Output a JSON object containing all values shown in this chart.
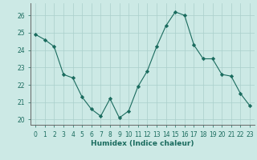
{
  "x": [
    0,
    1,
    2,
    3,
    4,
    5,
    6,
    7,
    8,
    9,
    10,
    11,
    12,
    13,
    14,
    15,
    16,
    17,
    18,
    19,
    20,
    21,
    22,
    23
  ],
  "y": [
    24.9,
    24.6,
    24.2,
    22.6,
    22.4,
    21.3,
    20.6,
    20.2,
    21.2,
    20.1,
    20.5,
    21.9,
    22.8,
    24.2,
    25.4,
    26.2,
    26.0,
    24.3,
    23.5,
    23.5,
    22.6,
    22.5,
    21.5,
    20.8
  ],
  "line_color": "#1a6b5e",
  "marker": "D",
  "marker_size": 2.2,
  "bg_color": "#cce9e5",
  "grid_color": "#aacfcb",
  "xlabel": "Humidex (Indice chaleur)",
  "xlim": [
    -0.5,
    23.5
  ],
  "ylim": [
    19.7,
    26.7
  ],
  "yticks": [
    20,
    21,
    22,
    23,
    24,
    25,
    26
  ],
  "xticks": [
    0,
    1,
    2,
    3,
    4,
    5,
    6,
    7,
    8,
    9,
    10,
    11,
    12,
    13,
    14,
    15,
    16,
    17,
    18,
    19,
    20,
    21,
    22,
    23
  ],
  "tick_fontsize": 5.5,
  "label_fontsize": 6.5
}
